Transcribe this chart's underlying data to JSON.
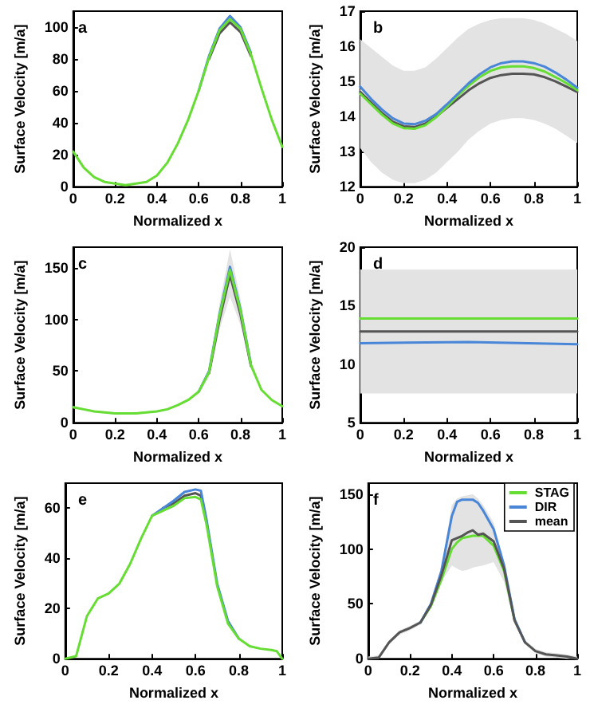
{
  "chart_data": [
    {
      "type": "line",
      "title": "a",
      "xlabel": "Normalized x",
      "ylabel": "Surface Velocity [m/a]",
      "x": [
        0,
        0.05,
        0.1,
        0.15,
        0.2,
        0.25,
        0.3,
        0.35,
        0.4,
        0.45,
        0.5,
        0.55,
        0.6,
        0.65,
        0.7,
        0.75,
        0.8,
        0.85,
        0.9,
        0.95,
        1
      ],
      "xlim": [
        0,
        1
      ],
      "xticks": [
        0,
        0.2,
        0.4,
        0.6,
        0.8,
        1
      ],
      "ylim": [
        0,
        110
      ],
      "yticks": [
        0,
        20,
        40,
        60,
        80,
        100
      ],
      "grid": false,
      "legend": false,
      "marker": "none",
      "line_style": "solid",
      "series": [
        {
          "name": null,
          "color": "#4a86d8",
          "values": [
            null,
            null,
            null,
            null,
            null,
            null,
            null,
            null,
            null,
            null,
            null,
            null,
            60,
            82,
            99,
            107,
            100,
            84,
            null,
            null,
            null
          ]
        },
        {
          "name": null,
          "color": "#555555",
          "values": [
            null,
            null,
            null,
            null,
            null,
            null,
            null,
            null,
            null,
            null,
            null,
            null,
            null,
            80,
            96,
            103,
            97,
            82,
            null,
            null,
            null
          ]
        },
        {
          "name": null,
          "color": "#66dd33",
          "values": [
            22,
            12,
            6,
            3,
            2,
            1,
            2,
            3,
            7,
            15,
            27,
            42,
            60,
            81,
            98,
            105,
            99,
            83,
            62,
            42,
            25
          ]
        }
      ]
    },
    {
      "type": "line",
      "title": "b",
      "xlabel": "Normalized x",
      "ylabel": "Surface Velocity [m/a]",
      "x": [
        0,
        0.05,
        0.1,
        0.15,
        0.2,
        0.25,
        0.3,
        0.35,
        0.4,
        0.45,
        0.5,
        0.55,
        0.6,
        0.65,
        0.7,
        0.75,
        0.8,
        0.85,
        0.9,
        0.95,
        1
      ],
      "xlim": [
        0,
        1
      ],
      "xticks": [
        0,
        0.2,
        0.4,
        0.6,
        0.8,
        1
      ],
      "ylim": [
        12,
        17
      ],
      "yticks": [
        12,
        13,
        14,
        15,
        16,
        17
      ],
      "grid": false,
      "legend": false,
      "marker": "none",
      "line_style": "solid",
      "series": [
        {
          "name": null,
          "color": "#555555",
          "values": [
            14.7,
            14.4,
            14.1,
            13.85,
            13.72,
            13.7,
            13.8,
            14.0,
            14.25,
            14.5,
            14.75,
            14.95,
            15.1,
            15.18,
            15.22,
            15.22,
            15.2,
            15.12,
            15.0,
            14.85,
            14.7
          ],
          "lower": [
            13.1,
            12.7,
            12.4,
            12.2,
            12.1,
            12.1,
            12.2,
            12.4,
            12.7,
            13.0,
            13.35,
            13.6,
            13.8,
            13.9,
            13.95,
            13.95,
            13.9,
            13.8,
            13.65,
            13.45,
            13.25
          ],
          "upper": [
            16.2,
            15.95,
            15.7,
            15.45,
            15.3,
            15.3,
            15.4,
            15.65,
            15.95,
            16.25,
            16.5,
            16.65,
            16.75,
            16.8,
            16.8,
            16.8,
            16.75,
            16.65,
            16.5,
            16.35,
            16.15
          ]
        },
        {
          "name": null,
          "color": "#66dd33",
          "values": [
            14.65,
            14.35,
            14.05,
            13.8,
            13.67,
            13.65,
            13.75,
            13.98,
            14.28,
            14.6,
            14.88,
            15.12,
            15.3,
            15.4,
            15.43,
            15.43,
            15.38,
            15.28,
            15.12,
            14.95,
            14.75
          ]
        },
        {
          "name": null,
          "color": "#4a86d8",
          "values": [
            14.85,
            14.5,
            14.2,
            13.95,
            13.8,
            13.78,
            13.88,
            14.07,
            14.35,
            14.65,
            14.95,
            15.2,
            15.4,
            15.52,
            15.57,
            15.57,
            15.52,
            15.42,
            15.25,
            15.05,
            14.82
          ]
        }
      ]
    },
    {
      "type": "line",
      "title": "c",
      "xlabel": "Normalized x",
      "ylabel": "Surface Velocity [m/a]",
      "x": [
        0,
        0.05,
        0.1,
        0.15,
        0.2,
        0.25,
        0.3,
        0.35,
        0.4,
        0.45,
        0.5,
        0.55,
        0.6,
        0.65,
        0.7,
        0.75,
        0.8,
        0.85,
        0.9,
        0.95,
        1
      ],
      "xlim": [
        0,
        1
      ],
      "xticks": [
        0,
        0.2,
        0.4,
        0.6,
        0.8,
        1
      ],
      "ylim": [
        0,
        170
      ],
      "yticks": [
        0,
        50,
        100,
        150
      ],
      "grid": false,
      "legend": false,
      "marker": "none",
      "line_style": "solid",
      "series": [
        {
          "name": null,
          "color": "#555555",
          "values": [
            null,
            null,
            null,
            null,
            null,
            null,
            null,
            null,
            null,
            null,
            null,
            null,
            null,
            48,
            100,
            143,
            105,
            55,
            null,
            null,
            null
          ],
          "lower": [
            14,
            12,
            10,
            9,
            8,
            8,
            8,
            9,
            10,
            12,
            16,
            21,
            28,
            44,
            90,
            122,
            95,
            52,
            31,
            21,
            15
          ],
          "upper": [
            16,
            14,
            12,
            11,
            10,
            10,
            10,
            11,
            12,
            14,
            18,
            23,
            32,
            52,
            115,
            168,
            120,
            60,
            33,
            23,
            17
          ]
        },
        {
          "name": null,
          "color": "#4a86d8",
          "values": [
            null,
            null,
            null,
            null,
            null,
            null,
            null,
            null,
            null,
            null,
            null,
            null,
            30,
            50,
            105,
            151,
            110,
            57,
            null,
            null,
            null
          ]
        },
        {
          "name": null,
          "color": "#66dd33",
          "values": [
            15,
            13,
            11,
            10,
            9,
            9,
            9,
            10,
            11,
            13,
            17,
            22,
            30,
            49,
            104,
            148,
            109,
            56,
            32,
            22,
            16
          ]
        }
      ]
    },
    {
      "type": "line",
      "title": "d",
      "xlabel": "Normalized x",
      "ylabel": "Surface Velocity [m/a]",
      "x": [
        0,
        0.5,
        1
      ],
      "xlim": [
        0,
        1
      ],
      "xticks": [
        0,
        0.2,
        0.4,
        0.6,
        0.8,
        1
      ],
      "ylim": [
        5,
        20
      ],
      "yticks": [
        5,
        10,
        15,
        20
      ],
      "grid": false,
      "legend": false,
      "marker": "none",
      "line_style": "solid",
      "series": [
        {
          "name": null,
          "color": "#555555",
          "values": [
            12.8,
            12.8,
            12.8
          ],
          "lower": [
            7.5,
            7.5,
            7.5
          ],
          "upper": [
            18.1,
            18.1,
            18.1
          ]
        },
        {
          "name": null,
          "color": "#66dd33",
          "values": [
            13.9,
            13.9,
            13.9
          ]
        },
        {
          "name": null,
          "color": "#4a86d8",
          "values": [
            11.8,
            11.9,
            11.7
          ]
        }
      ]
    },
    {
      "type": "line",
      "title": "e",
      "xlabel": "Normalized x",
      "ylabel": "Surface Velocity [m/a]",
      "x": [
        0,
        0.05,
        0.1,
        0.15,
        0.2,
        0.25,
        0.3,
        0.35,
        0.4,
        0.45,
        0.5,
        0.55,
        0.6,
        0.625,
        0.65,
        0.7,
        0.75,
        0.8,
        0.85,
        0.9,
        0.95,
        0.975,
        1
      ],
      "xlim": [
        0,
        1
      ],
      "xticks": [
        0,
        0.2,
        0.4,
        0.6,
        0.8,
        1
      ],
      "ylim": [
        0,
        70
      ],
      "yticks": [
        0,
        20,
        40,
        60
      ],
      "grid": false,
      "legend": false,
      "marker": "none",
      "line_style": "solid",
      "series": [
        {
          "name": null,
          "color": "#555555",
          "values": [
            null,
            null,
            null,
            null,
            null,
            null,
            null,
            null,
            null,
            60,
            62,
            65,
            66,
            65,
            55,
            null,
            null,
            null,
            null,
            null,
            null,
            null,
            null
          ]
        },
        {
          "name": null,
          "color": "#4a86d8",
          "values": [
            null,
            null,
            null,
            null,
            null,
            null,
            null,
            null,
            57,
            60,
            63,
            66.5,
            67.5,
            67,
            56,
            30,
            15,
            8,
            null,
            null,
            null,
            null,
            null
          ]
        },
        {
          "name": null,
          "color": "#66dd33",
          "values": [
            0,
            1,
            17,
            24,
            26,
            30,
            38,
            48,
            57,
            59,
            61,
            64,
            64.5,
            63.5,
            54,
            29,
            14,
            8,
            5,
            4,
            3.5,
            3,
            0
          ]
        }
      ]
    },
    {
      "type": "line",
      "title": "f",
      "xlabel": "Normalized x",
      "ylabel": "Surface Velocity [m/a]",
      "x": [
        0,
        0.05,
        0.1,
        0.15,
        0.2,
        0.25,
        0.3,
        0.35,
        0.4,
        0.425,
        0.45,
        0.475,
        0.5,
        0.525,
        0.55,
        0.6,
        0.65,
        0.7,
        0.75,
        0.8,
        0.85,
        0.9,
        0.95,
        1
      ],
      "xlim": [
        0,
        1
      ],
      "xticks": [
        0,
        0.2,
        0.4,
        0.6,
        0.8,
        1
      ],
      "ylim": [
        0,
        160
      ],
      "yticks": [
        0,
        50,
        100,
        150
      ],
      "grid": false,
      "legend": "top right",
      "marker": "none",
      "line_style": "solid",
      "series": [
        {
          "name": "STAG",
          "color": "#66dd33",
          "values": [
            null,
            null,
            null,
            null,
            null,
            33,
            48,
            72,
            100,
            106,
            110,
            111,
            112,
            112,
            112,
            103,
            80,
            35,
            null,
            null,
            null,
            null,
            null,
            null
          ]
        },
        {
          "name": "DIR",
          "color": "#4a86d8",
          "values": [
            null,
            null,
            null,
            null,
            null,
            33,
            50,
            80,
            130,
            143,
            145,
            145,
            145,
            142,
            135,
            118,
            85,
            36,
            15,
            null,
            null,
            null,
            null,
            null
          ]
        },
        {
          "name": "mean",
          "color": "#555555",
          "values": [
            0,
            1,
            15,
            24,
            28,
            33,
            49,
            76,
            108,
            110,
            112,
            115,
            117,
            113,
            114,
            107,
            82,
            35,
            15,
            7,
            4,
            3,
            2,
            0
          ],
          "lower": [
            0,
            0,
            13,
            22,
            26,
            31,
            46,
            70,
            85,
            82,
            80,
            81,
            83,
            84,
            85,
            88,
            70,
            32,
            13,
            5,
            2,
            1,
            0,
            0
          ],
          "upper": [
            2,
            3,
            17,
            26,
            30,
            35,
            52,
            82,
            140,
            146,
            148,
            149,
            150,
            146,
            140,
            124,
            88,
            38,
            17,
            9,
            6,
            5,
            4,
            2
          ]
        }
      ]
    }
  ]
}
